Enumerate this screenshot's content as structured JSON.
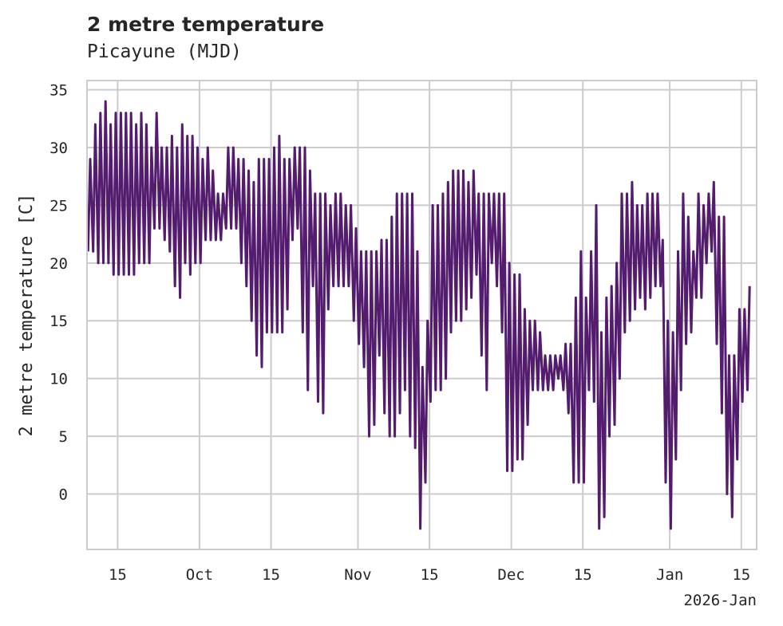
{
  "chart_data": {
    "type": "line",
    "title": "2 metre temperature",
    "subtitle": "Picayune (MJD)",
    "ylabel": "2 metre temperature [C]",
    "xlabel": "",
    "x_offset_label": "2026-Jan",
    "ylim": [
      -4.8,
      35.8
    ],
    "yticks": [
      0,
      5,
      10,
      15,
      20,
      25,
      30,
      35
    ],
    "xlim_days": [
      -5,
      126
    ],
    "xticks": [
      {
        "day": 1,
        "label": "15"
      },
      {
        "day": 17,
        "label": "Oct"
      },
      {
        "day": 31,
        "label": "15"
      },
      {
        "day": 48,
        "label": "Nov"
      },
      {
        "day": 62,
        "label": "15"
      },
      {
        "day": 78,
        "label": "Dec"
      },
      {
        "day": 92,
        "label": "15"
      },
      {
        "day": 109,
        "label": "Jan"
      },
      {
        "day": 123,
        "label": "15"
      }
    ],
    "line_color": "#541C6E",
    "grid": true,
    "series": [
      {
        "name": "2 metre temperature",
        "daily_min_max": [
          [
            -5,
            21,
            29
          ],
          [
            -4,
            21,
            32
          ],
          [
            -3,
            20,
            33
          ],
          [
            -2,
            20,
            34
          ],
          [
            -1,
            20,
            32
          ],
          [
            0,
            19,
            33
          ],
          [
            1,
            19,
            33
          ],
          [
            2,
            19,
            33
          ],
          [
            3,
            19,
            33
          ],
          [
            4,
            19,
            32
          ],
          [
            5,
            20,
            33
          ],
          [
            6,
            20,
            32
          ],
          [
            7,
            20,
            30
          ],
          [
            8,
            23,
            33
          ],
          [
            9,
            23,
            30
          ],
          [
            10,
            22,
            30
          ],
          [
            11,
            21,
            31
          ],
          [
            12,
            18,
            30
          ],
          [
            13,
            17,
            32
          ],
          [
            14,
            20,
            31
          ],
          [
            15,
            19,
            31
          ],
          [
            16,
            20,
            30
          ],
          [
            17,
            20,
            29
          ],
          [
            18,
            22,
            30
          ],
          [
            19,
            22,
            28
          ],
          [
            20,
            22,
            26
          ],
          [
            21,
            22,
            26
          ],
          [
            22,
            23,
            30
          ],
          [
            23,
            23,
            30
          ],
          [
            24,
            23,
            29
          ],
          [
            25,
            20,
            29
          ],
          [
            26,
            18,
            28
          ],
          [
            27,
            15,
            27
          ],
          [
            28,
            12,
            29
          ],
          [
            29,
            11,
            29
          ],
          [
            30,
            14,
            29
          ],
          [
            31,
            14,
            30
          ],
          [
            32,
            14,
            31
          ],
          [
            33,
            14,
            29
          ],
          [
            34,
            16,
            29
          ],
          [
            35,
            22,
            30
          ],
          [
            36,
            23,
            30
          ],
          [
            37,
            14,
            30
          ],
          [
            38,
            9,
            28
          ],
          [
            39,
            18,
            26
          ],
          [
            40,
            8,
            26
          ],
          [
            41,
            7,
            26
          ],
          [
            42,
            16,
            25
          ],
          [
            43,
            18,
            26
          ],
          [
            44,
            18,
            26
          ],
          [
            45,
            18,
            25
          ],
          [
            46,
            18,
            25
          ],
          [
            47,
            15,
            23
          ],
          [
            48,
            13,
            21
          ],
          [
            49,
            11,
            21
          ],
          [
            50,
            5,
            21
          ],
          [
            51,
            6,
            21
          ],
          [
            52,
            12,
            22
          ],
          [
            53,
            7,
            22
          ],
          [
            54,
            5,
            24
          ],
          [
            55,
            5,
            26
          ],
          [
            56,
            7,
            26
          ],
          [
            57,
            9,
            26
          ],
          [
            58,
            5,
            26
          ],
          [
            59,
            4,
            21
          ],
          [
            60,
            -3,
            11
          ],
          [
            61,
            1,
            15
          ],
          [
            62,
            8,
            25
          ],
          [
            63,
            9,
            25
          ],
          [
            64,
            9,
            26
          ],
          [
            65,
            10,
            27
          ],
          [
            66,
            14,
            28
          ],
          [
            67,
            15,
            28
          ],
          [
            68,
            15,
            28
          ],
          [
            69,
            16,
            27
          ],
          [
            70,
            17,
            28
          ],
          [
            71,
            19,
            26
          ],
          [
            72,
            12,
            26
          ],
          [
            73,
            9,
            26
          ],
          [
            74,
            20,
            26
          ],
          [
            75,
            18,
            26
          ],
          [
            76,
            14,
            26
          ],
          [
            77,
            2,
            20
          ],
          [
            78,
            2,
            19
          ],
          [
            79,
            3,
            19
          ],
          [
            80,
            3,
            16
          ],
          [
            81,
            6,
            15
          ],
          [
            82,
            9,
            15
          ],
          [
            83,
            9,
            14
          ],
          [
            84,
            9,
            12
          ],
          [
            85,
            9,
            12
          ],
          [
            86,
            9,
            12
          ],
          [
            87,
            10,
            12
          ],
          [
            88,
            9,
            13
          ],
          [
            89,
            7,
            13
          ],
          [
            90,
            1,
            17
          ],
          [
            91,
            1,
            21
          ],
          [
            92,
            1,
            17
          ],
          [
            93,
            9,
            21
          ],
          [
            94,
            8,
            25
          ],
          [
            95,
            -3,
            14
          ],
          [
            96,
            -2,
            17
          ],
          [
            97,
            5,
            18
          ],
          [
            98,
            6,
            20
          ],
          [
            99,
            10,
            26
          ],
          [
            100,
            14,
            26
          ],
          [
            101,
            15,
            27
          ],
          [
            102,
            16,
            25
          ],
          [
            103,
            17,
            25
          ],
          [
            104,
            16,
            26
          ],
          [
            105,
            17,
            26
          ],
          [
            106,
            18,
            26
          ],
          [
            107,
            18,
            22
          ],
          [
            108,
            1,
            15
          ],
          [
            109,
            -3,
            14
          ],
          [
            110,
            3,
            21
          ],
          [
            111,
            9,
            26
          ],
          [
            112,
            13,
            24
          ],
          [
            113,
            14,
            21
          ],
          [
            114,
            17,
            26
          ],
          [
            115,
            17,
            25
          ],
          [
            116,
            20,
            26
          ],
          [
            117,
            21,
            27
          ],
          [
            118,
            13,
            24
          ],
          [
            119,
            7,
            24
          ],
          [
            120,
            0,
            12
          ],
          [
            121,
            -2,
            12
          ],
          [
            122,
            3,
            16
          ],
          [
            123,
            8,
            16
          ],
          [
            124,
            9,
            18
          ]
        ]
      }
    ]
  }
}
